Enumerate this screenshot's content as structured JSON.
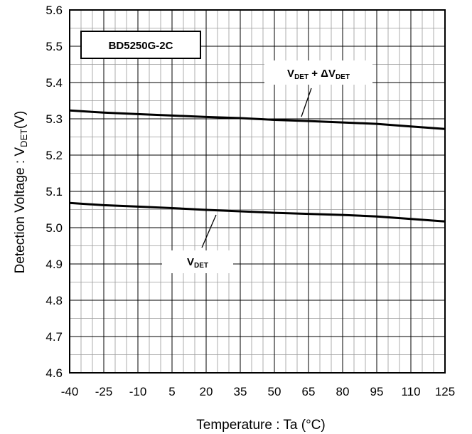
{
  "chart_data": {
    "type": "line",
    "title": "BD5250G-2C",
    "xlabel": "Temperature : Ta (°C)",
    "ylabel": {
      "prefix": "Detection Voltage : V",
      "sub": "DET",
      "suffix": "(V)"
    },
    "xlim": [
      -40,
      125
    ],
    "ylim": [
      4.6,
      5.6
    ],
    "x_ticks": [
      -40,
      -25,
      -10,
      5,
      20,
      35,
      50,
      65,
      80,
      95,
      110,
      125
    ],
    "x_tick_labels": [
      "-40",
      "-25",
      "-10",
      "5",
      "20",
      "35",
      "50",
      "65",
      "80",
      "95",
      "110",
      "125"
    ],
    "y_ticks": [
      4.6,
      4.7,
      4.8,
      4.9,
      5.0,
      5.1,
      5.2,
      5.3,
      5.4,
      5.5,
      5.6
    ],
    "y_tick_labels": [
      "4.6",
      "4.7",
      "4.8",
      "4.9",
      "5.0",
      "5.1",
      "5.2",
      "5.3",
      "5.4",
      "5.5",
      "5.6"
    ],
    "grid": true,
    "series": [
      {
        "label": {
          "a": "V",
          "a_sub": "DET",
          "mid": " + ΔV",
          "b_sub": "DET"
        },
        "x": [
          -40,
          -25,
          -10,
          5,
          20,
          35,
          50,
          65,
          80,
          95,
          110,
          125
        ],
        "y": [
          5.323,
          5.317,
          5.313,
          5.309,
          5.305,
          5.302,
          5.297,
          5.294,
          5.29,
          5.286,
          5.279,
          5.272
        ]
      },
      {
        "label": {
          "a": "V",
          "a_sub": "DET"
        },
        "x": [
          -40,
          -25,
          -10,
          5,
          20,
          35,
          50,
          65,
          80,
          95,
          110,
          125
        ],
        "y": [
          5.068,
          5.062,
          5.058,
          5.054,
          5.049,
          5.045,
          5.041,
          5.038,
          5.035,
          5.031,
          5.024,
          5.017
        ]
      }
    ]
  }
}
